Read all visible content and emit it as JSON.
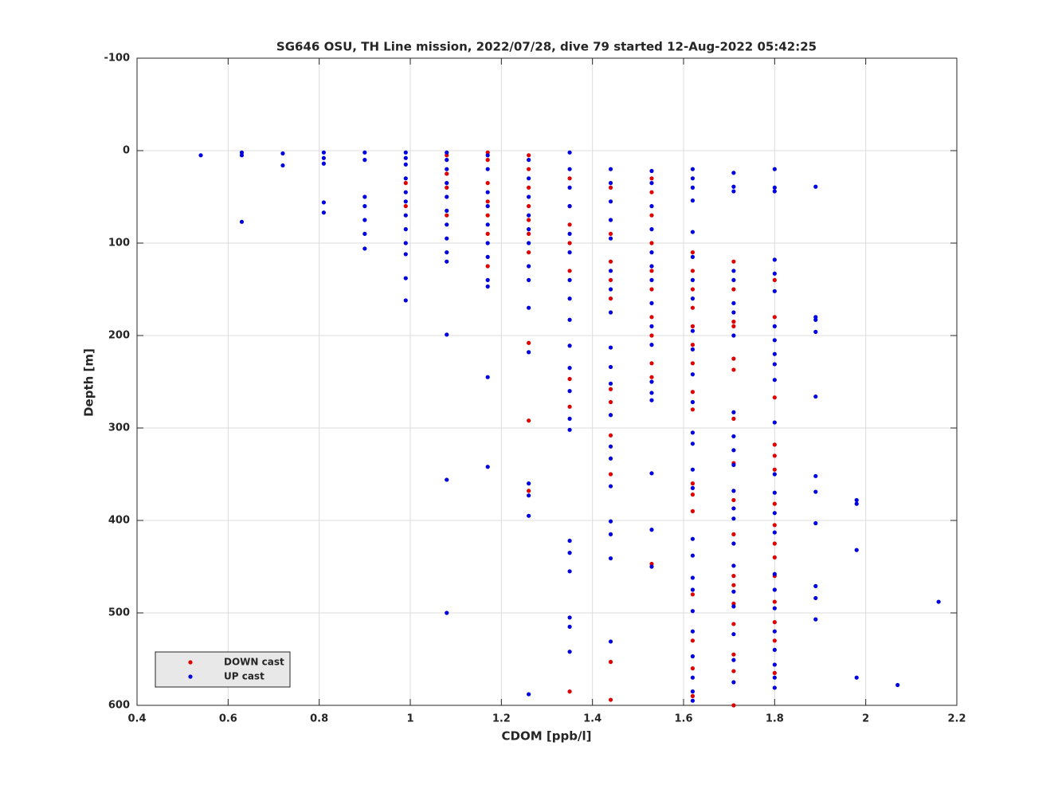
{
  "chart_data": {
    "type": "scatter",
    "title": "SG646 OSU, TH Line mission, 2022/07/28, dive 79 started 12-Aug-2022 05:42:25",
    "x_label": "CDOM [ppb/l]",
    "y_label": "Depth [m]",
    "xlim": [
      0.4,
      2.2
    ],
    "xticks": [
      0.4,
      0.6,
      0.8,
      1,
      1.2,
      1.4,
      1.6,
      1.8,
      2,
      2.2
    ],
    "ylim": [
      -100,
      600
    ],
    "yticks": [
      -100,
      0,
      100,
      200,
      300,
      400,
      500,
      600
    ],
    "y_reversed": true,
    "grid": true,
    "legend": "lower left",
    "series": [
      {
        "name": "DOWN cast",
        "color": "#e00000",
        "x": [
          0.99,
          0.99,
          1.08,
          1.08,
          1.08,
          1.08,
          1.17,
          1.17,
          1.17,
          1.17,
          1.17,
          1.17,
          1.17,
          1.26,
          1.26,
          1.26,
          1.26,
          1.26,
          1.26,
          1.26,
          1.26,
          1.26,
          1.26,
          1.35,
          1.35,
          1.35,
          1.35,
          1.35,
          1.35,
          1.35,
          1.35,
          1.44,
          1.44,
          1.44,
          1.44,
          1.44,
          1.44,
          1.44,
          1.44,
          1.44,
          1.44,
          1.44,
          1.53,
          1.53,
          1.53,
          1.53,
          1.53,
          1.53,
          1.53,
          1.53,
          1.53,
          1.53,
          1.53,
          1.62,
          1.62,
          1.62,
          1.62,
          1.62,
          1.62,
          1.62,
          1.62,
          1.62,
          1.62,
          1.62,
          1.62,
          1.62,
          1.62,
          1.62,
          1.62,
          1.71,
          1.71,
          1.71,
          1.71,
          1.71,
          1.71,
          1.71,
          1.71,
          1.71,
          1.71,
          1.71,
          1.71,
          1.71,
          1.71,
          1.71,
          1.71,
          1.71,
          1.8,
          1.8,
          1.8,
          1.8,
          1.8,
          1.8,
          1.8,
          1.8,
          1.8,
          1.8,
          1.8,
          1.8,
          1.8,
          1.8,
          1.8
        ],
        "values": [
          35,
          60,
          5,
          25,
          40,
          70,
          2,
          10,
          35,
          55,
          70,
          90,
          125,
          5,
          20,
          40,
          60,
          75,
          90,
          110,
          208,
          292,
          368,
          30,
          60,
          80,
          100,
          130,
          247,
          277,
          585,
          40,
          90,
          120,
          140,
          160,
          258,
          272,
          308,
          350,
          553,
          594,
          30,
          45,
          70,
          100,
          130,
          150,
          180,
          200,
          230,
          245,
          447,
          110,
          130,
          150,
          170,
          190,
          210,
          230,
          261,
          280,
          360,
          372,
          390,
          480,
          530,
          560,
          590,
          120,
          150,
          185,
          190,
          225,
          237,
          290,
          338,
          378,
          415,
          460,
          470,
          490,
          512,
          545,
          563,
          600,
          140,
          180,
          267,
          318,
          330,
          345,
          382,
          405,
          425,
          440,
          460,
          488,
          510,
          530,
          565
        ]
      },
      {
        "name": "UP cast",
        "color": "#0000e0",
        "x": [
          0.54,
          0.63,
          0.63,
          0.63,
          0.72,
          0.72,
          0.81,
          0.81,
          0.81,
          0.81,
          0.81,
          0.9,
          0.9,
          0.9,
          0.9,
          0.9,
          0.9,
          0.9,
          0.99,
          0.99,
          0.99,
          0.99,
          0.99,
          0.99,
          0.99,
          0.99,
          0.99,
          0.99,
          0.99,
          0.99,
          1.08,
          1.08,
          1.08,
          1.08,
          1.08,
          1.08,
          1.08,
          1.08,
          1.08,
          1.08,
          1.08,
          1.08,
          1.08,
          1.17,
          1.17,
          1.17,
          1.17,
          1.17,
          1.17,
          1.17,
          1.17,
          1.17,
          1.17,
          1.17,
          1.26,
          1.26,
          1.26,
          1.26,
          1.26,
          1.26,
          1.26,
          1.26,
          1.26,
          1.26,
          1.26,
          1.26,
          1.26,
          1.26,
          1.35,
          1.35,
          1.35,
          1.35,
          1.35,
          1.35,
          1.35,
          1.35,
          1.35,
          1.35,
          1.35,
          1.35,
          1.35,
          1.35,
          1.35,
          1.35,
          1.35,
          1.35,
          1.35,
          1.35,
          1.44,
          1.44,
          1.44,
          1.44,
          1.44,
          1.44,
          1.44,
          1.44,
          1.44,
          1.44,
          1.44,
          1.44,
          1.44,
          1.44,
          1.44,
          1.44,
          1.44,
          1.44,
          1.44,
          1.53,
          1.53,
          1.53,
          1.53,
          1.53,
          1.53,
          1.53,
          1.53,
          1.53,
          1.53,
          1.53,
          1.53,
          1.53,
          1.53,
          1.53,
          1.53,
          1.62,
          1.62,
          1.62,
          1.62,
          1.62,
          1.62,
          1.62,
          1.62,
          1.62,
          1.62,
          1.62,
          1.62,
          1.62,
          1.62,
          1.62,
          1.62,
          1.62,
          1.62,
          1.62,
          1.62,
          1.62,
          1.62,
          1.62,
          1.62,
          1.62,
          1.62,
          1.71,
          1.71,
          1.71,
          1.71,
          1.71,
          1.71,
          1.71,
          1.71,
          1.71,
          1.71,
          1.71,
          1.71,
          1.71,
          1.71,
          1.71,
          1.71,
          1.71,
          1.71,
          1.71,
          1.71,
          1.71,
          1.71,
          1.8,
          1.8,
          1.8,
          1.8,
          1.8,
          1.8,
          1.8,
          1.8,
          1.8,
          1.8,
          1.8,
          1.8,
          1.8,
          1.8,
          1.8,
          1.8,
          1.8,
          1.8,
          1.8,
          1.8,
          1.8,
          1.8,
          1.8,
          1.8,
          1.89,
          1.89,
          1.89,
          1.89,
          1.89,
          1.89,
          1.89,
          1.89,
          1.89,
          1.89,
          1.89,
          1.98,
          1.98,
          1.98,
          1.98,
          2.07,
          2.16
        ],
        "values": [
          5,
          2,
          5,
          77,
          3,
          16,
          2,
          8,
          14,
          56,
          67,
          2,
          10,
          50,
          60,
          75,
          90,
          106,
          2,
          8,
          15,
          30,
          45,
          55,
          70,
          85,
          100,
          112,
          138,
          162,
          2,
          10,
          20,
          35,
          50,
          65,
          80,
          95,
          110,
          120,
          199,
          356,
          500,
          5,
          20,
          45,
          60,
          80,
          100,
          115,
          140,
          147,
          245,
          342,
          10,
          30,
          50,
          70,
          85,
          100,
          125,
          140,
          170,
          218,
          360,
          373,
          395,
          588,
          2,
          20,
          40,
          60,
          90,
          110,
          140,
          160,
          183,
          211,
          235,
          260,
          290,
          302,
          422,
          435,
          455,
          505,
          515,
          542,
          20,
          35,
          55,
          75,
          95,
          130,
          150,
          175,
          213,
          234,
          252,
          286,
          320,
          333,
          363,
          401,
          415,
          441,
          531,
          22,
          35,
          60,
          85,
          110,
          125,
          140,
          165,
          190,
          210,
          250,
          262,
          270,
          349,
          410,
          450,
          20,
          30,
          40,
          54,
          88,
          115,
          140,
          160,
          195,
          215,
          242,
          272,
          305,
          317,
          345,
          365,
          420,
          438,
          462,
          475,
          498,
          520,
          547,
          570,
          585,
          595,
          24,
          39,
          44,
          130,
          140,
          165,
          175,
          200,
          283,
          309,
          324,
          340,
          368,
          387,
          398,
          425,
          449,
          477,
          493,
          523,
          551,
          575,
          20,
          40,
          44,
          118,
          133,
          152,
          190,
          205,
          220,
          231,
          248,
          294,
          350,
          370,
          392,
          413,
          458,
          475,
          495,
          520,
          540,
          556,
          570,
          581,
          39,
          180,
          183,
          196,
          266,
          352,
          369,
          403,
          471,
          484,
          507,
          378,
          382,
          432,
          570,
          578,
          488
        ]
      }
    ]
  }
}
